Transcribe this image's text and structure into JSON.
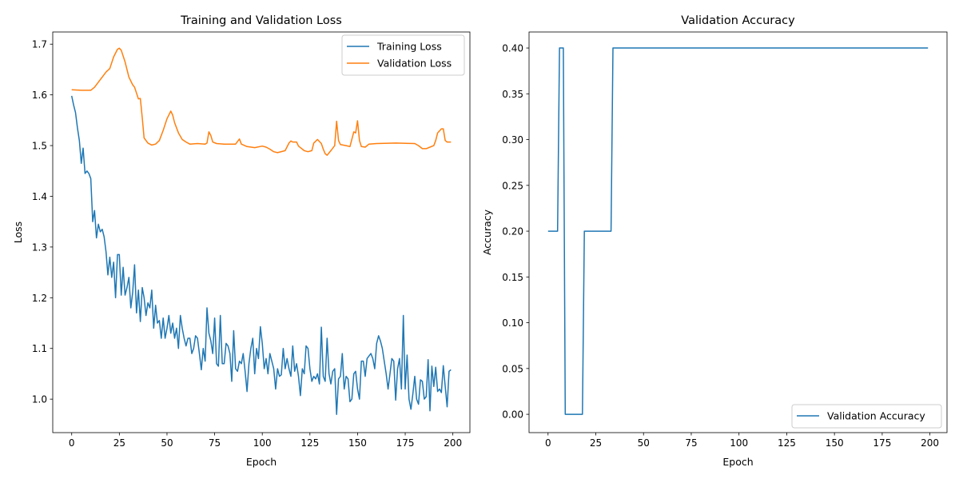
{
  "chart_data": [
    {
      "type": "line",
      "title": "Training and Validation Loss",
      "xlabel": "Epoch",
      "ylabel": "Loss",
      "xlim": [
        -9.95,
        208.95
      ],
      "ylim": [
        0.934,
        1.724
      ],
      "xticks": [
        0,
        25,
        50,
        75,
        100,
        125,
        150,
        175,
        200
      ],
      "yticks": [
        1.0,
        1.1,
        1.2,
        1.3,
        1.4,
        1.5,
        1.6,
        1.7
      ],
      "ytick_decimals": 1,
      "grid": false,
      "legend": "top-right",
      "series": [
        {
          "name": "Training Loss",
          "color": "#1f77b4",
          "x": [
            0,
            1,
            2,
            3,
            4,
            5,
            6,
            7,
            8,
            9,
            10,
            11,
            12,
            13,
            14,
            15,
            16,
            17,
            18,
            19,
            20,
            21,
            22,
            23,
            24,
            25,
            26,
            27,
            28,
            29,
            30,
            31,
            32,
            33,
            34,
            35,
            36,
            37,
            38,
            39,
            40,
            41,
            42,
            43,
            44,
            45,
            46,
            47,
            48,
            49,
            50,
            51,
            52,
            53,
            54,
            55,
            56,
            57,
            58,
            59,
            60,
            61,
            62,
            63,
            64,
            65,
            66,
            67,
            68,
            69,
            70,
            71,
            72,
            73,
            74,
            75,
            76,
            77,
            78,
            79,
            80,
            81,
            82,
            83,
            84,
            85,
            86,
            87,
            88,
            89,
            90,
            91,
            92,
            93,
            94,
            95,
            96,
            97,
            98,
            99,
            100,
            101,
            102,
            103,
            104,
            105,
            106,
            107,
            108,
            109,
            110,
            111,
            112,
            113,
            114,
            115,
            116,
            117,
            118,
            119,
            120,
            121,
            122,
            123,
            124,
            125,
            126,
            127,
            128,
            129,
            130,
            131,
            132,
            133,
            134,
            135,
            136,
            137,
            138,
            139,
            140,
            141,
            142,
            143,
            144,
            145,
            146,
            147,
            148,
            149,
            150,
            151,
            152,
            153,
            154,
            155,
            156,
            157,
            158,
            159,
            160,
            161,
            162,
            163,
            164,
            165,
            166,
            167,
            168,
            169,
            170,
            171,
            172,
            173,
            174,
            175,
            176,
            177,
            178,
            179,
            180,
            181,
            182,
            183,
            184,
            185,
            186,
            187,
            188,
            189,
            190,
            191,
            192,
            193,
            194,
            195,
            196,
            197,
            198,
            199
          ],
          "y": [
            1.598,
            1.58,
            1.565,
            1.535,
            1.51,
            1.465,
            1.495,
            1.445,
            1.45,
            1.445,
            1.435,
            1.35,
            1.372,
            1.318,
            1.345,
            1.33,
            1.335,
            1.32,
            1.29,
            1.245,
            1.28,
            1.24,
            1.27,
            1.2,
            1.285,
            1.285,
            1.205,
            1.26,
            1.205,
            1.22,
            1.24,
            1.18,
            1.21,
            1.265,
            1.17,
            1.215,
            1.153,
            1.22,
            1.2,
            1.165,
            1.19,
            1.18,
            1.215,
            1.14,
            1.185,
            1.15,
            1.155,
            1.12,
            1.16,
            1.12,
            1.14,
            1.165,
            1.13,
            1.15,
            1.12,
            1.14,
            1.1,
            1.165,
            1.14,
            1.12,
            1.105,
            1.12,
            1.12,
            1.09,
            1.1,
            1.125,
            1.12,
            1.09,
            1.058,
            1.1,
            1.075,
            1.18,
            1.13,
            1.115,
            1.09,
            1.16,
            1.07,
            1.065,
            1.165,
            1.07,
            1.07,
            1.11,
            1.105,
            1.09,
            1.035,
            1.135,
            1.06,
            1.055,
            1.075,
            1.07,
            1.09,
            1.055,
            1.015,
            1.07,
            1.1,
            1.12,
            1.05,
            1.1,
            1.08,
            1.143,
            1.11,
            1.06,
            1.08,
            1.05,
            1.09,
            1.075,
            1.06,
            1.02,
            1.06,
            1.045,
            1.048,
            1.1,
            1.06,
            1.08,
            1.06,
            1.045,
            1.105,
            1.055,
            1.07,
            1.045,
            1.007,
            1.06,
            1.05,
            1.105,
            1.1,
            1.06,
            1.035,
            1.045,
            1.04,
            1.05,
            1.03,
            1.142,
            1.045,
            1.035,
            1.12,
            1.05,
            1.03,
            1.055,
            1.06,
            0.97,
            1.04,
            1.045,
            1.09,
            1.02,
            1.045,
            1.04,
            0.995,
            1.0,
            1.05,
            1.055,
            1.02,
            1.0,
            1.075,
            1.075,
            1.045,
            1.08,
            1.085,
            1.09,
            1.08,
            1.06,
            1.11,
            1.125,
            1.115,
            1.1,
            1.075,
            1.05,
            1.02,
            1.05,
            1.08,
            1.075,
            0.998,
            1.06,
            1.08,
            1.02,
            1.165,
            1.02,
            1.087,
            1.0,
            0.98,
            1.01,
            1.045,
            1.0,
            0.99,
            1.038,
            1.035,
            1.0,
            1.005,
            1.078,
            0.977,
            1.065,
            1.025,
            1.063,
            1.015,
            1.02,
            1.013,
            1.066,
            1.025,
            0.985,
            1.055,
            1.058
          ]
        },
        {
          "name": "Validation Loss",
          "color": "#ff7f0e",
          "x": [
            0,
            5,
            10,
            12,
            15,
            18,
            20,
            22,
            24,
            25,
            26,
            28,
            30,
            32,
            33,
            35,
            36,
            37,
            38,
            40,
            42,
            44,
            46,
            48,
            50,
            52,
            53,
            54,
            56,
            58,
            60,
            62,
            66,
            70,
            71,
            72,
            73,
            74,
            76,
            80,
            86,
            88,
            89,
            92,
            96,
            100,
            102,
            104,
            106,
            108,
            112,
            114,
            115,
            116,
            118,
            119,
            122,
            124,
            126,
            127,
            129,
            131,
            132,
            133,
            134,
            136,
            138,
            139,
            140,
            141,
            144,
            146,
            148,
            149,
            150,
            151,
            152,
            154,
            156,
            160,
            170,
            180,
            182,
            184,
            186,
            188,
            190,
            191,
            192,
            194,
            195,
            196,
            197,
            199
          ],
          "y": [
            1.61,
            1.609,
            1.609,
            1.615,
            1.63,
            1.645,
            1.652,
            1.675,
            1.69,
            1.692,
            1.688,
            1.665,
            1.635,
            1.62,
            1.615,
            1.592,
            1.593,
            1.555,
            1.515,
            1.505,
            1.501,
            1.503,
            1.51,
            1.53,
            1.553,
            1.568,
            1.56,
            1.545,
            1.525,
            1.512,
            1.507,
            1.503,
            1.504,
            1.503,
            1.505,
            1.527,
            1.52,
            1.507,
            1.504,
            1.503,
            1.503,
            1.513,
            1.503,
            1.498,
            1.496,
            1.499,
            1.497,
            1.493,
            1.488,
            1.486,
            1.49,
            1.505,
            1.509,
            1.507,
            1.507,
            1.499,
            1.49,
            1.488,
            1.49,
            1.505,
            1.512,
            1.504,
            1.493,
            1.484,
            1.481,
            1.49,
            1.5,
            1.548,
            1.51,
            1.502,
            1.5,
            1.498,
            1.527,
            1.525,
            1.549,
            1.51,
            1.498,
            1.497,
            1.503,
            1.504,
            1.505,
            1.504,
            1.5,
            1.494,
            1.494,
            1.497,
            1.5,
            1.51,
            1.525,
            1.533,
            1.533,
            1.51,
            1.507,
            1.507
          ]
        }
      ]
    },
    {
      "type": "line",
      "title": "Validation Accuracy",
      "xlabel": "Epoch",
      "ylabel": "Accuracy",
      "xlim": [
        -9.95,
        208.95
      ],
      "ylim": [
        -0.02,
        0.4175
      ],
      "xticks": [
        0,
        25,
        50,
        75,
        100,
        125,
        150,
        175,
        200
      ],
      "yticks": [
        0.0,
        0.05,
        0.1,
        0.15,
        0.2,
        0.25,
        0.3,
        0.35,
        0.4
      ],
      "ytick_decimals": 2,
      "grid": false,
      "legend": "bottom-right",
      "series": [
        {
          "name": "Validation Accuracy",
          "color": "#1f77b4",
          "x": [
            0,
            5,
            6,
            8,
            9,
            18,
            19,
            33,
            34,
            199
          ],
          "y": [
            0.2,
            0.2,
            0.4,
            0.4,
            0.0,
            0.0,
            0.2,
            0.2,
            0.4,
            0.4
          ]
        }
      ]
    }
  ]
}
